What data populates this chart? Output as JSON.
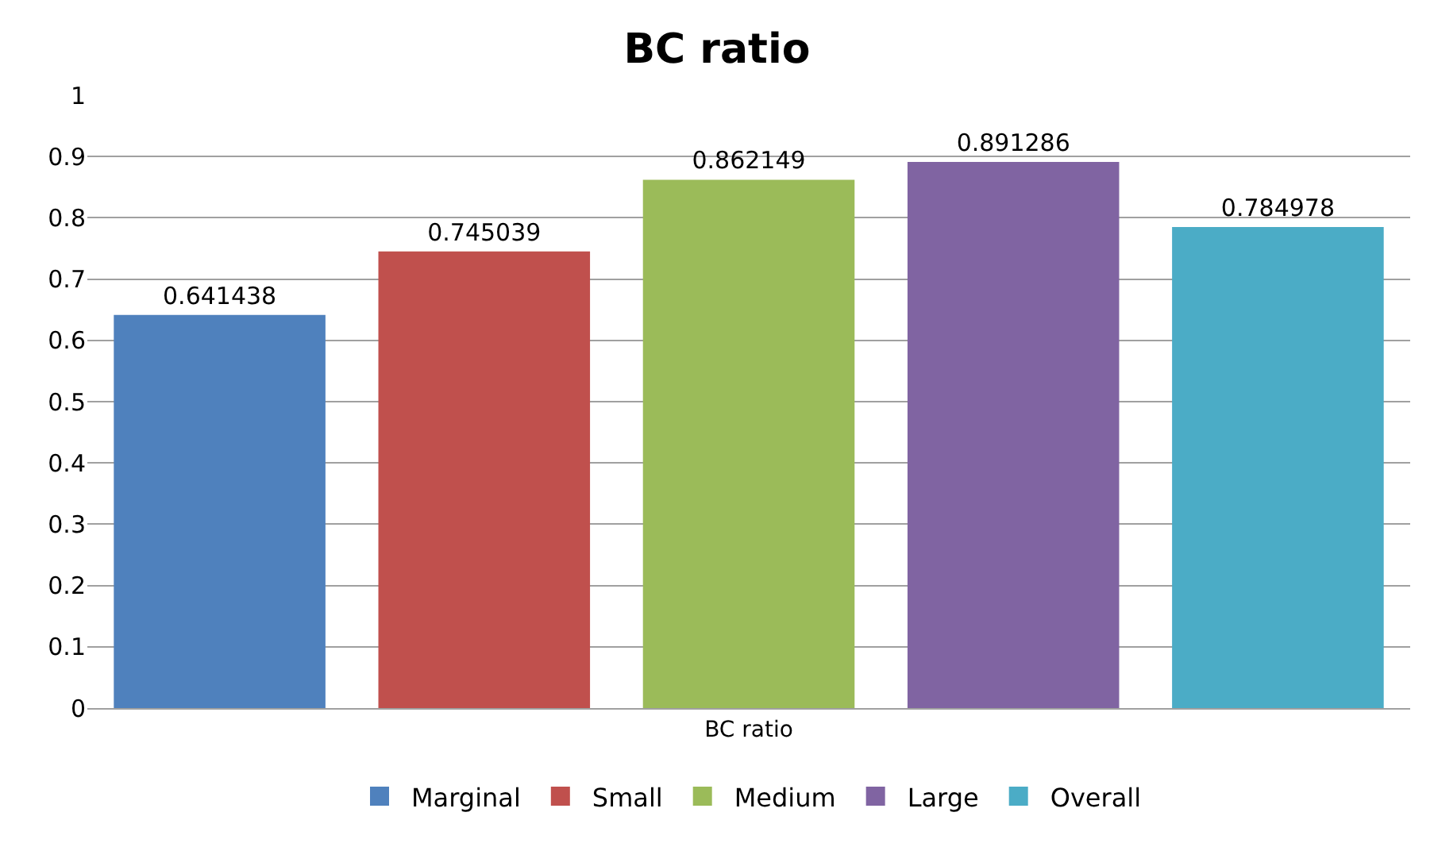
{
  "chart_data": {
    "type": "bar",
    "title": "BC ratio",
    "categories": [
      "BC ratio"
    ],
    "series": [
      {
        "name": "Marginal",
        "color": "#4f81bd",
        "values": [
          0.641438
        ]
      },
      {
        "name": "Small",
        "color": "#c0504d",
        "values": [
          0.745039
        ]
      },
      {
        "name": "Medium",
        "color": "#9bbb59",
        "values": [
          0.862149
        ]
      },
      {
        "name": "Large",
        "color": "#8064a2",
        "values": [
          0.891286
        ]
      },
      {
        "name": "Overall",
        "color": "#4bacc6",
        "values": [
          0.784978
        ]
      }
    ],
    "ylim": [
      0,
      1
    ],
    "yticks": [
      0,
      0.1,
      0.2,
      0.3,
      0.4,
      0.5,
      0.6,
      0.7,
      0.8,
      0.9,
      1
    ],
    "grid": "y",
    "legend": "bottom",
    "data_labels": true
  }
}
